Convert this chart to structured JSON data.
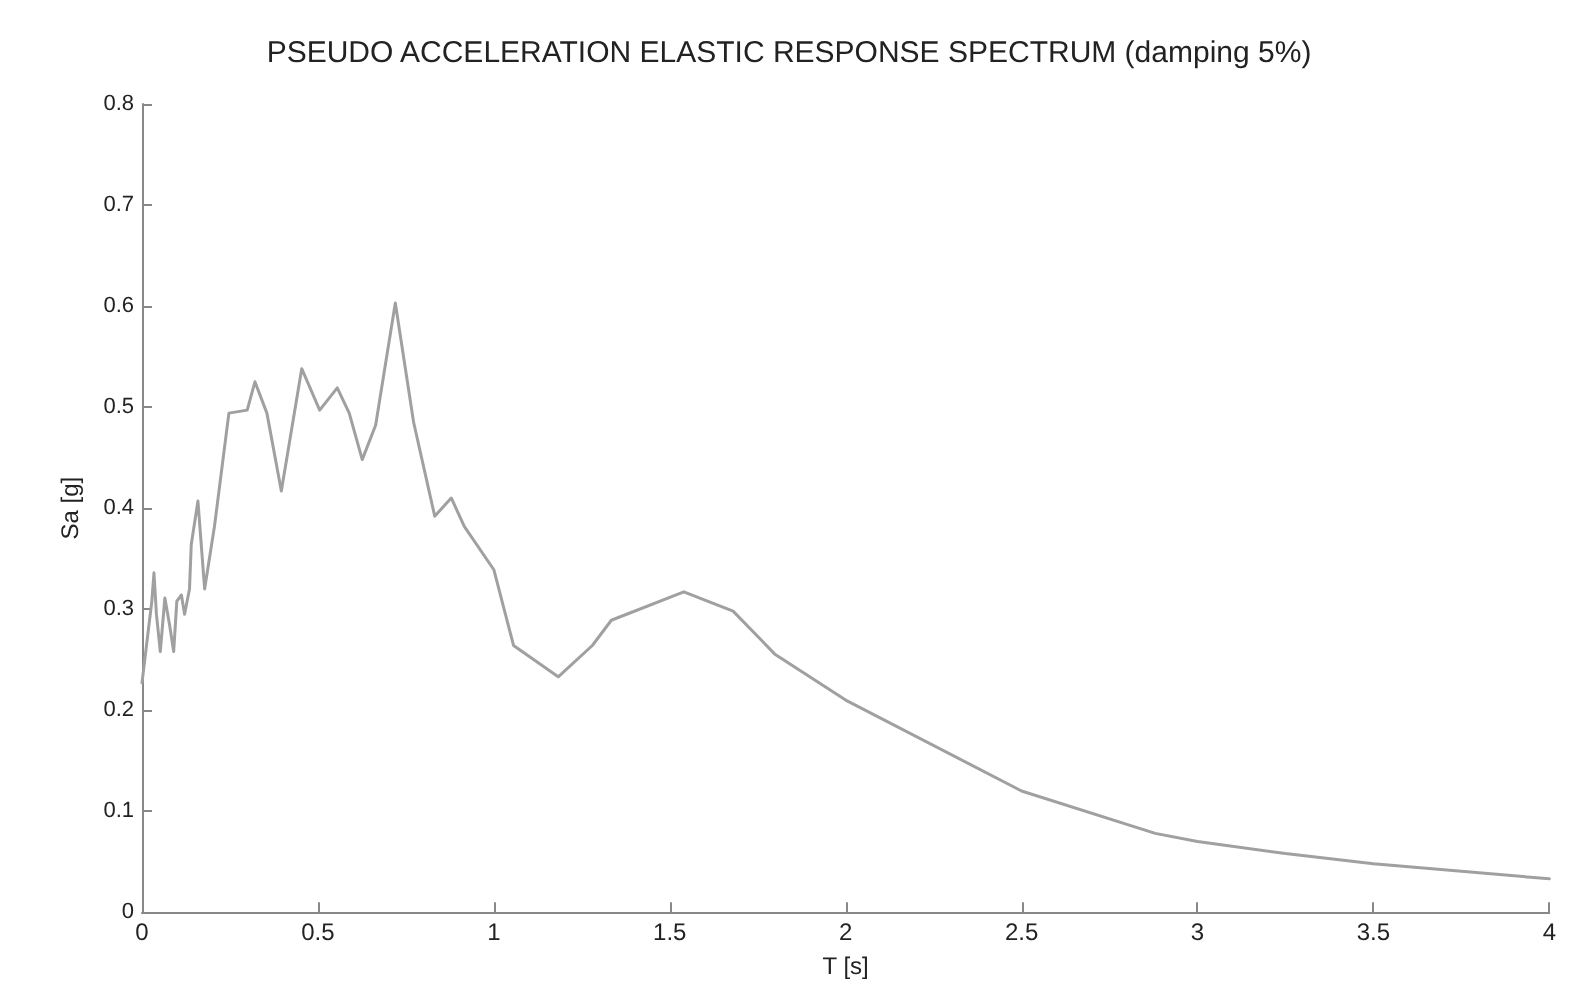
{
  "chart_data": {
    "type": "line",
    "title": "PSEUDO ACCELERATION ELASTIC RESPONSE SPECTRUM (damping 5%)",
    "xlabel": "T [s]",
    "ylabel": "Sa [g]",
    "x": [
      0,
      0.028,
      0.034,
      0.041,
      0.052,
      0.065,
      0.079,
      0.09,
      0.099,
      0.112,
      0.121,
      0.135,
      0.14,
      0.159,
      0.178,
      0.206,
      0.247,
      0.299,
      0.321,
      0.355,
      0.396,
      0.454,
      0.505,
      0.555,
      0.589,
      0.626,
      0.664,
      0.72,
      0.772,
      0.832,
      0.879,
      0.916,
      1.0,
      1.056,
      1.183,
      1.28,
      1.334,
      1.54,
      1.68,
      1.8,
      2.0,
      2.5,
      2.88,
      3.0,
      3.25,
      3.5,
      4.0
    ],
    "series": [
      {
        "color": "#a0a0a0",
        "values": [
          0.227,
          0.308,
          0.336,
          0.295,
          0.258,
          0.311,
          0.283,
          0.258,
          0.308,
          0.314,
          0.295,
          0.32,
          0.364,
          0.407,
          0.32,
          0.382,
          0.494,
          0.497,
          0.525,
          0.494,
          0.417,
          0.538,
          0.497,
          0.519,
          0.494,
          0.448,
          0.482,
          0.603,
          0.485,
          0.392,
          0.41,
          0.382,
          0.339,
          0.264,
          0.233,
          0.264,
          0.289,
          0.317,
          0.298,
          0.255,
          0.21,
          0.12,
          0.078,
          0.07,
          0.058,
          0.048,
          0.033
        ]
      }
    ],
    "xlim": [
      0,
      4
    ],
    "xticks": [
      0,
      0.5,
      1,
      1.5,
      2,
      2.5,
      3,
      3.5,
      4
    ],
    "ylim": [
      0,
      0.8
    ],
    "yticks": [
      0,
      0.1,
      0.2,
      0.3,
      0.4,
      0.5,
      0.6,
      0.7,
      0.8
    ],
    "grid": false,
    "marker": "none",
    "line_style": "solid"
  }
}
